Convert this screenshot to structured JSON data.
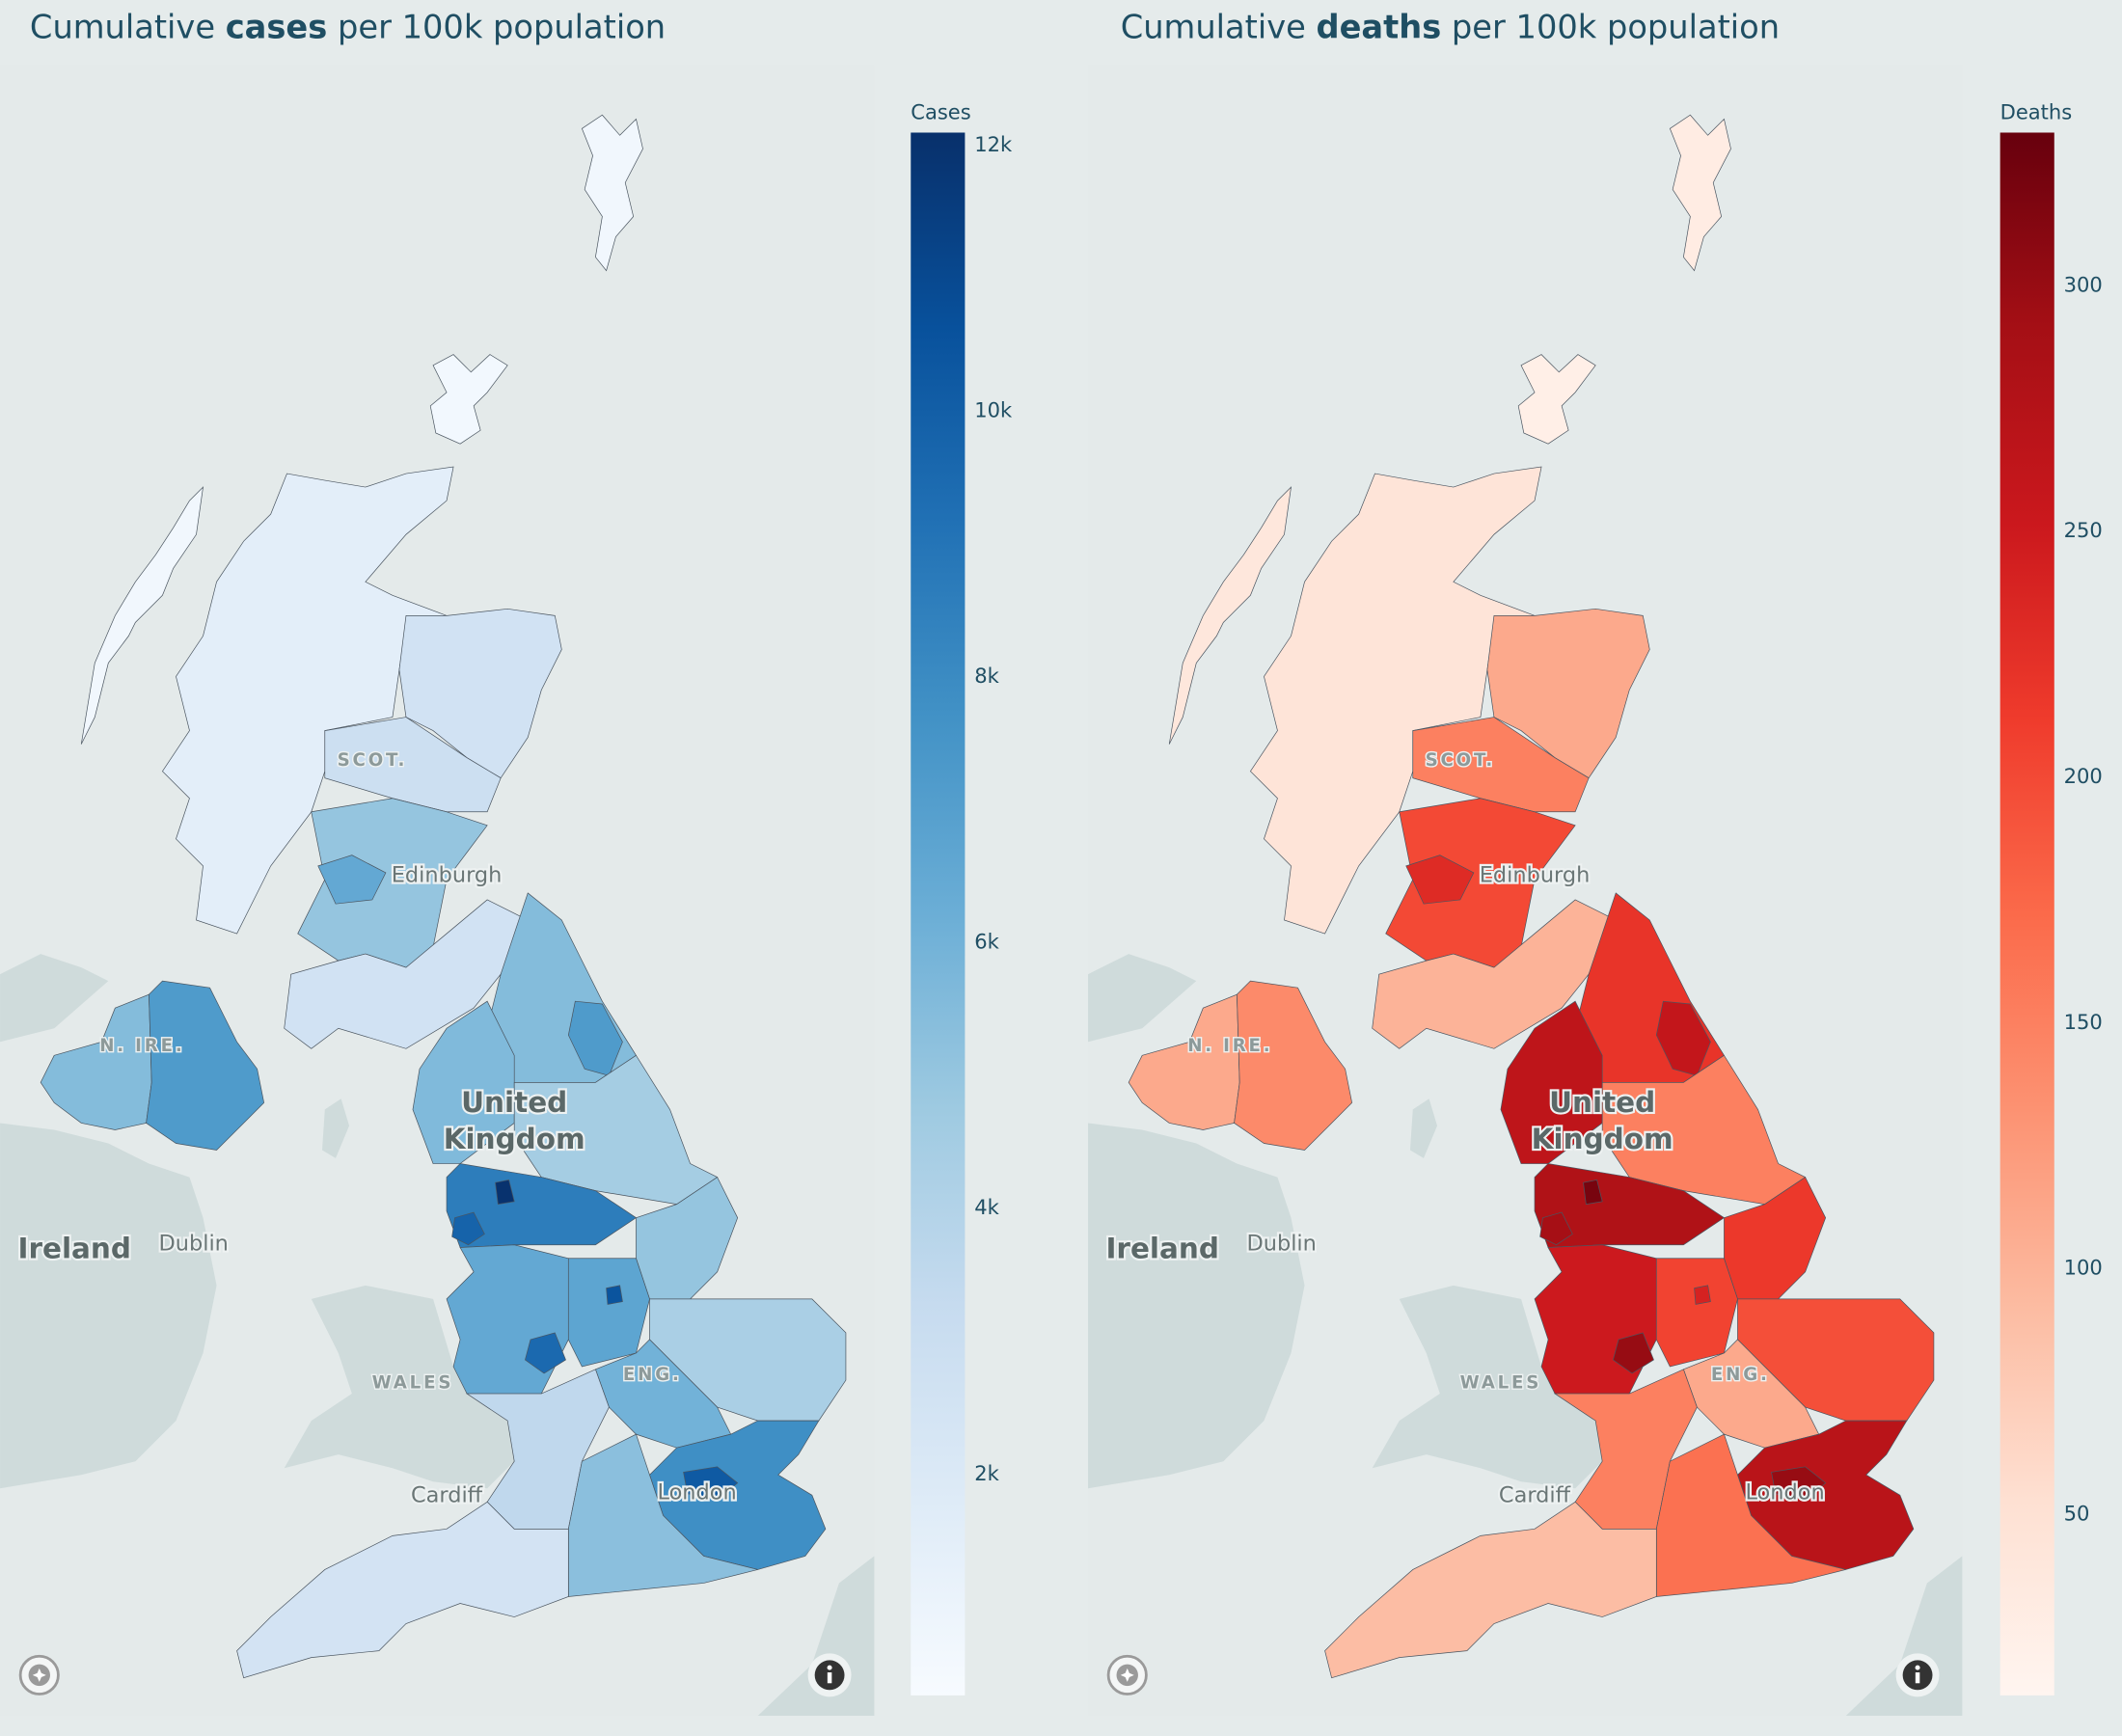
{
  "left_title": {
    "pre": "Cumulative ",
    "bold": "cases",
    "post": " per 100k population"
  },
  "right_title": {
    "pre": "Cumulative ",
    "bold": "deaths",
    "post": " per 100k population"
  },
  "map_labels": {
    "scot": "SCOT.",
    "edinburgh": "Edinburgh",
    "uk_line1": "United",
    "uk_line2": "Kingdom",
    "nire": "N. IRE.",
    "ireland": "Ireland",
    "dublin": "Dublin",
    "wales": "WALES",
    "eng": "ENG.",
    "cardiff": "Cardiff",
    "london": "London"
  },
  "colors": {
    "background": "#e5ebeb",
    "land": "#cfdbdb",
    "text": "#1f4e63"
  },
  "chart_data": [
    {
      "type": "choropleth",
      "title": "Cumulative cases per 100k population",
      "colorbar_title": "Cases",
      "colorscale": "Blues",
      "range": [
        330,
        12090
      ],
      "ticks": [
        2000,
        4000,
        6000,
        8000,
        10000,
        12000
      ],
      "tick_labels": [
        "2k",
        "4k",
        "6k",
        "8k",
        "10k",
        "12k"
      ]
    },
    {
      "type": "choropleth",
      "title": "Cumulative deaths per 100k population",
      "colorbar_title": "Deaths",
      "colorscale": "Reds",
      "range": [
        13,
        331
      ],
      "ticks": [
        50,
        100,
        150,
        200,
        250,
        300
      ],
      "tick_labels": [
        "50",
        "100",
        "150",
        "200",
        "250",
        "300"
      ]
    }
  ],
  "regions": [
    {
      "id": "shetland",
      "cases": 700,
      "deaths": 30
    },
    {
      "id": "orkney",
      "cases": 600,
      "deaths": 25
    },
    {
      "id": "western-isles",
      "cases": 700,
      "deaths": 40
    },
    {
      "id": "highlands",
      "cases": 1500,
      "deaths": 45
    },
    {
      "id": "north-east-scotland",
      "cases": 2600,
      "deaths": 110
    },
    {
      "id": "tayside",
      "cases": 2900,
      "deaths": 150
    },
    {
      "id": "central-belt",
      "cases": 5000,
      "deaths": 200
    },
    {
      "id": "glasgow",
      "cases": 6500,
      "deaths": 230
    },
    {
      "id": "southern-scotland",
      "cases": 2600,
      "deaths": 100
    },
    {
      "id": "north-east-england",
      "cases": 5500,
      "deaths": 220
    },
    {
      "id": "tyneside",
      "cases": 7200,
      "deaths": 260
    },
    {
      "id": "cumbria-lancashire",
      "cases": 5600,
      "deaths": 265
    },
    {
      "id": "yorkshire",
      "cases": 4500,
      "deaths": 150
    },
    {
      "id": "greater-manchester",
      "cases": 8600,
      "deaths": 280
    },
    {
      "id": "manchester-hotspot",
      "cases": 12000,
      "deaths": 320
    },
    {
      "id": "liverpool",
      "cases": 9800,
      "deaths": 290
    },
    {
      "id": "lincolnshire",
      "cases": 5000,
      "deaths": 215
    },
    {
      "id": "west-midlands",
      "cases": 6500,
      "deaths": 250
    },
    {
      "id": "birmingham",
      "cases": 9500,
      "deaths": 300
    },
    {
      "id": "east-midlands",
      "cases": 6700,
      "deaths": 205
    },
    {
      "id": "leicester",
      "cases": 10500,
      "deaths": 240
    },
    {
      "id": "east-anglia",
      "cases": 4300,
      "deaths": 195
    },
    {
      "id": "cambs-herts",
      "cases": 6000,
      "deaths": 110
    },
    {
      "id": "severn-cotswolds",
      "cases": 3500,
      "deaths": 150
    },
    {
      "id": "london-essex-kent",
      "cases": 7800,
      "deaths": 270
    },
    {
      "id": "london-hotspot",
      "cases": 10200,
      "deaths": 300
    },
    {
      "id": "southern-england",
      "cases": 5300,
      "deaths": 165
    },
    {
      "id": "south-west",
      "cases": 2500,
      "deaths": 90
    },
    {
      "id": "northern-ireland-west",
      "cases": 5500,
      "deaths": 110
    },
    {
      "id": "northern-ireland-east",
      "cases": 7200,
      "deaths": 140
    }
  ]
}
